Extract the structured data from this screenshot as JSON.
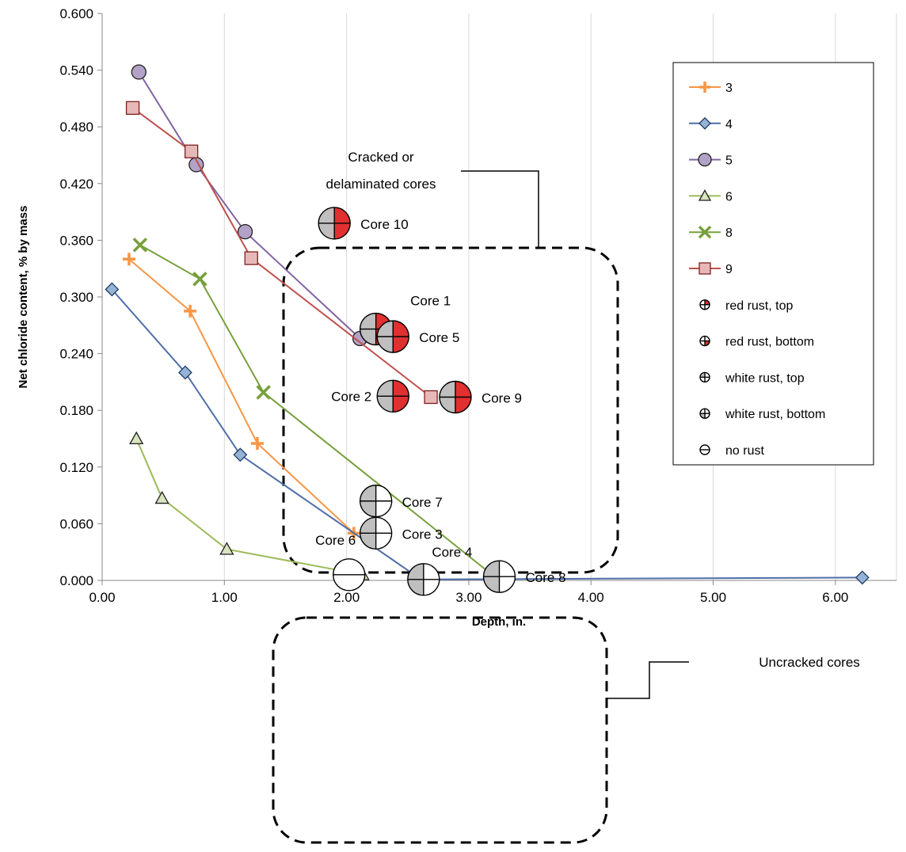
{
  "chart_data": {
    "type": "scatter",
    "xlabel": "Depth, in.",
    "ylabel": "Net chloride content, % by mass",
    "xlim": [
      0,
      6.5
    ],
    "ylim": [
      0,
      0.6
    ],
    "x_ticks": [
      "0.00",
      "1.00",
      "2.00",
      "3.00",
      "4.00",
      "5.00",
      "6.00"
    ],
    "x_tick_values": [
      0,
      1,
      2,
      3,
      4,
      5,
      6
    ],
    "y_ticks": [
      "0.000",
      "0.060",
      "0.120",
      "0.180",
      "0.240",
      "0.300",
      "0.360",
      "0.420",
      "0.480",
      "0.540",
      "0.600"
    ],
    "y_tick_values": [
      0,
      0.06,
      0.12,
      0.18,
      0.24,
      0.3,
      0.36,
      0.42,
      0.48,
      0.54,
      0.6
    ],
    "grid": "vertical",
    "legend_position": "top-right",
    "series": [
      {
        "name": "3",
        "marker": "plus",
        "color": "#F79646",
        "points": [
          [
            0.22,
            0.34
          ],
          [
            0.72,
            0.285
          ],
          [
            1.27,
            0.145
          ],
          [
            2.06,
            0.05
          ]
        ]
      },
      {
        "name": "4",
        "marker": "diamond",
        "color": "#4F6EA8",
        "fill": "#95B3D7",
        "points": [
          [
            0.08,
            0.308
          ],
          [
            0.68,
            0.22
          ],
          [
            1.13,
            0.133
          ],
          [
            2.61,
            0.001
          ],
          [
            6.22,
            0.003
          ]
        ]
      },
      {
        "name": "5",
        "marker": "circle",
        "color": "#8064A2",
        "fill": "#B3A2C7",
        "points": [
          [
            0.3,
            0.538
          ],
          [
            0.77,
            0.44
          ],
          [
            1.17,
            0.369
          ],
          [
            2.11,
            0.256
          ]
        ]
      },
      {
        "name": "6",
        "marker": "triangle",
        "color": "#9BBB59",
        "fill": "#D7E4BD",
        "points": [
          [
            0.28,
            0.15
          ],
          [
            0.49,
            0.087
          ],
          [
            1.02,
            0.033
          ],
          [
            2.13,
            0.006
          ]
        ]
      },
      {
        "name": "8",
        "marker": "x",
        "color": "#77A03C",
        "points": [
          [
            0.31,
            0.355
          ],
          [
            0.8,
            0.319
          ],
          [
            1.32,
            0.199
          ],
          [
            3.2,
            0.005
          ]
        ]
      },
      {
        "name": "9",
        "marker": "square",
        "color": "#C0504D",
        "fill": "#E6B9B8",
        "points": [
          [
            0.25,
            0.5
          ],
          [
            0.73,
            0.454
          ],
          [
            1.22,
            0.341
          ],
          [
            2.69,
            0.194
          ]
        ]
      }
    ],
    "core_symbols": [
      {
        "label": "Core 10",
        "x": 1.9,
        "y": 0.378,
        "rust": "red",
        "label_side": "right"
      },
      {
        "label": "Core 1",
        "x": 2.24,
        "y": 0.266,
        "rust": "red",
        "label_side": "above"
      },
      {
        "label": "Core 5",
        "x": 2.38,
        "y": 0.258,
        "rust": "red",
        "label_side": "right"
      },
      {
        "label": "Core 2",
        "x": 2.38,
        "y": 0.195,
        "rust": "red",
        "label_side": "left"
      },
      {
        "label": "Core 9",
        "x": 2.89,
        "y": 0.194,
        "rust": "red",
        "label_side": "right"
      },
      {
        "label": "Core 7",
        "x": 2.24,
        "y": 0.084,
        "rust": "white",
        "label_side": "right"
      },
      {
        "label": "Core 3",
        "x": 2.24,
        "y": 0.05,
        "rust": "white",
        "label_side": "right"
      },
      {
        "label": "Core 6",
        "x": 2.02,
        "y": 0.006,
        "rust": "none",
        "label_side": "above"
      },
      {
        "label": "Core 4",
        "x": 2.63,
        "y": 0.001,
        "rust": "white",
        "label_side": "above"
      },
      {
        "label": "Core 8",
        "x": 3.25,
        "y": 0.004,
        "rust": "white",
        "label_side": "right"
      }
    ],
    "annotations": [
      {
        "text_lines": [
          "Cracked or",
          "delaminated cores"
        ]
      },
      {
        "text_lines": [
          "Uncracked cores"
        ]
      }
    ],
    "symbol_legend": [
      {
        "label": "red rust, top",
        "rust": "red-top"
      },
      {
        "label": "red rust, bottom",
        "rust": "red-bottom"
      },
      {
        "label": "white rust, top",
        "rust": "white-top"
      },
      {
        "label": "white rust, bottom",
        "rust": "white-bottom"
      },
      {
        "label": "no rust",
        "rust": "none"
      }
    ],
    "colors": {
      "red_rust": "#E03030",
      "white_rust": "#BFBFBF",
      "grid": "#D9D9D9"
    }
  }
}
